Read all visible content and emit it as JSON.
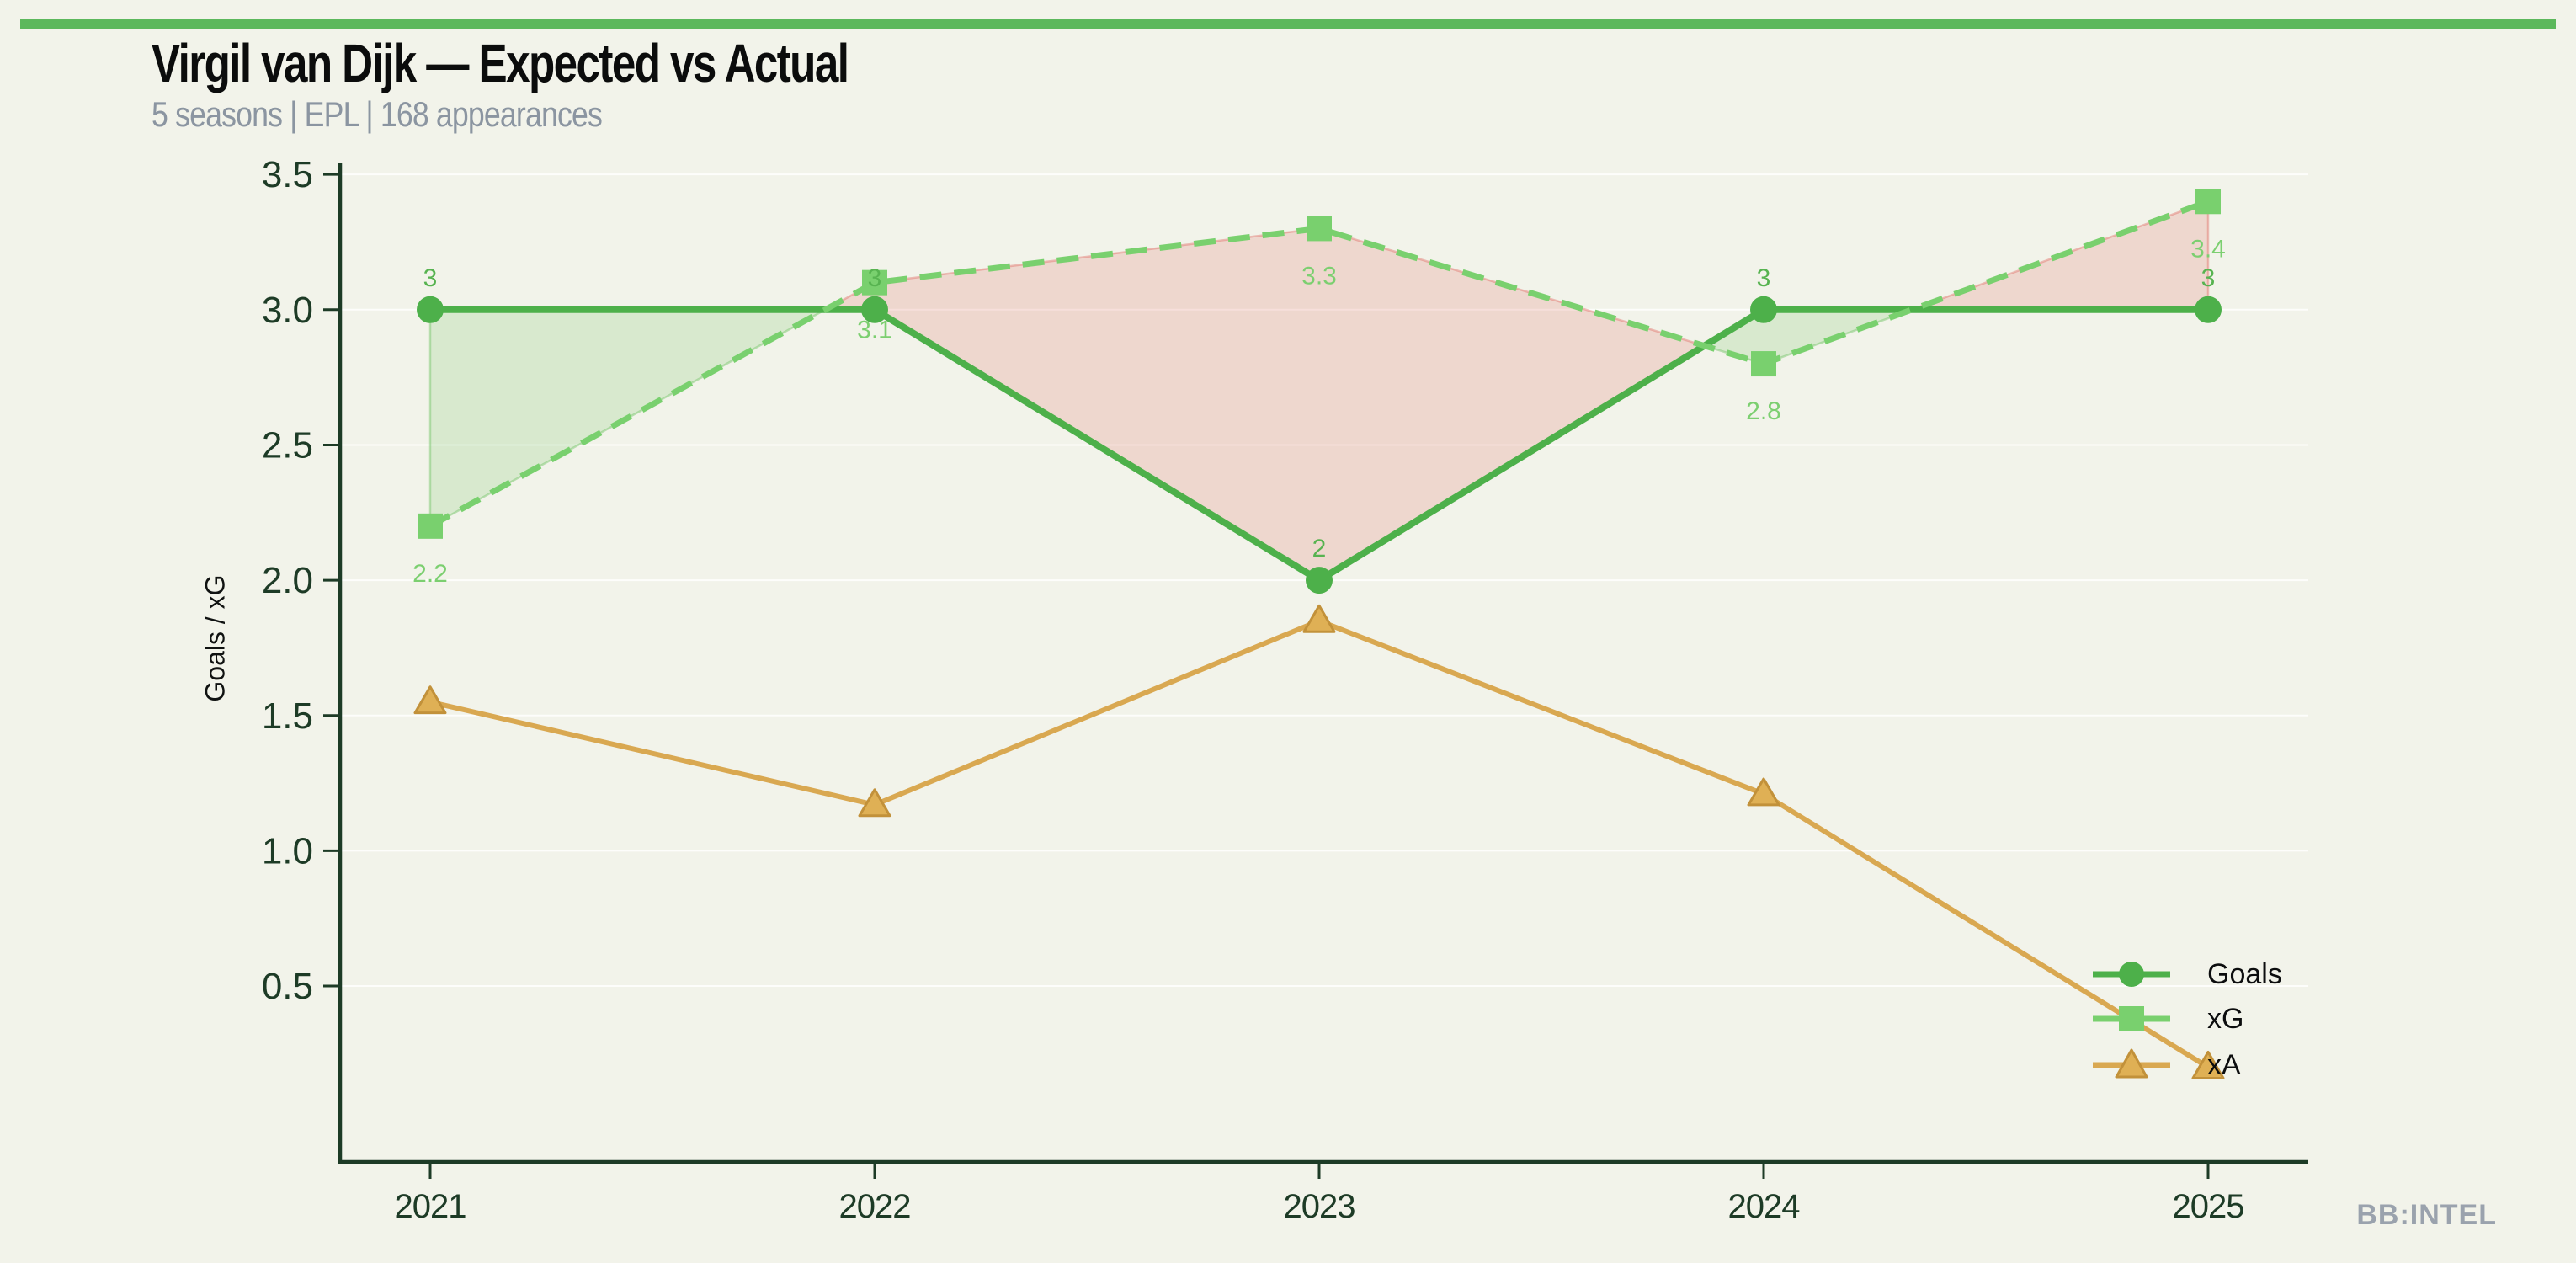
{
  "page": {
    "brand": "BB:INTEL",
    "background_color": "#f2f3ea",
    "accent_bar_color": "#5cb85c",
    "axis_color": "#1d3b26",
    "subtitle_color": "#8b95a1"
  },
  "header": {
    "title": "Virgil van Dijk — Expected vs Actual",
    "subtitle": "5 seasons | EPL | 168 appearances"
  },
  "chart_data": {
    "type": "line",
    "title": "Virgil van Dijk — Expected vs Actual",
    "subtitle": "5 seasons | EPL | 168 appearances",
    "x_categories": [
      "2021",
      "2022",
      "2023",
      "2024",
      "2025"
    ],
    "xlabel": "",
    "ylabel": "Goals / xG",
    "ylim": [
      -0.15,
      3.55
    ],
    "yticks": [
      0.5,
      1.0,
      1.5,
      2.0,
      2.5,
      3.0,
      3.5
    ],
    "ytick_labels": [
      "0.5",
      "1.0",
      "1.5",
      "2.0",
      "2.5",
      "3.0",
      "3.5"
    ],
    "grid": "horizontal-faint",
    "legend_position": "lower-right",
    "series": [
      {
        "name": "Goals",
        "values": [
          3,
          3,
          2,
          3,
          3
        ],
        "point_labels": [
          "3",
          "3",
          "2",
          "3",
          "3"
        ],
        "marker": "circle",
        "line_style": "solid",
        "color": "#4db04a",
        "label_color": "#57b350"
      },
      {
        "name": "xG",
        "values": [
          2.2,
          3.1,
          3.3,
          2.8,
          3.4
        ],
        "point_labels": [
          "2.2",
          "3.1",
          "3.3",
          "2.8",
          "3.4"
        ],
        "marker": "square",
        "line_style": "dashed",
        "color": "#79d06e",
        "label_color": "#7ccf70"
      },
      {
        "name": "xA",
        "values": [
          1.55,
          1.17,
          1.85,
          1.21,
          0.2
        ],
        "marker": "triangle-up",
        "line_style": "solid",
        "color": "#d9a851",
        "marker_fill": "#dfb055",
        "marker_stroke": "#c2913a"
      }
    ],
    "fill_between": {
      "series_pair": [
        "Goals",
        "xG"
      ],
      "positive_color": "rgba(123,199,111,0.22)",
      "positive_edge": "rgba(123,199,111,0.50)",
      "negative_color": "rgba(224,106,97,0.20)",
      "negative_edge": "rgba(224,106,97,0.42)"
    }
  }
}
